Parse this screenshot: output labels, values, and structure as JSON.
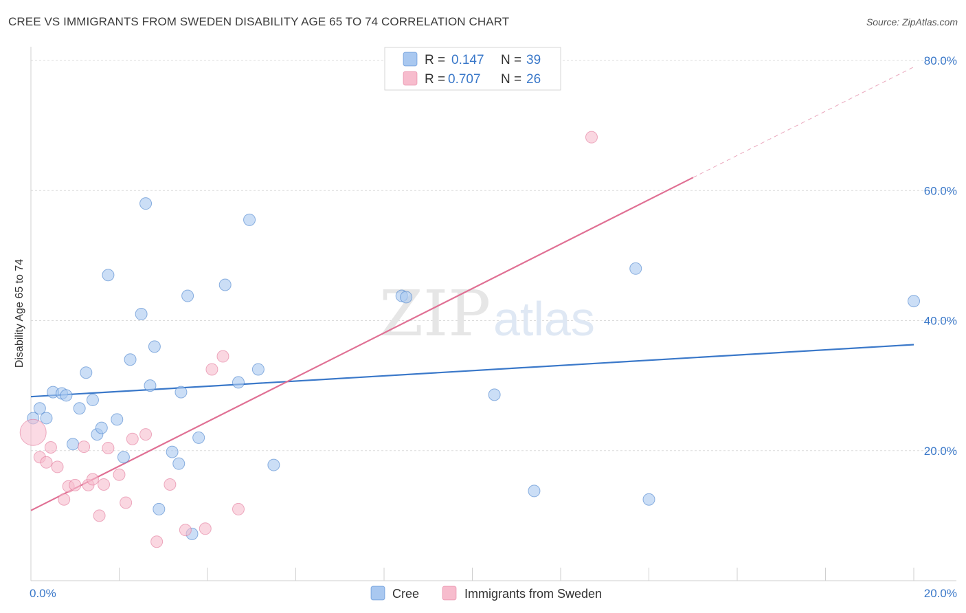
{
  "title": "CREE VS IMMIGRANTS FROM SWEDEN DISABILITY AGE 65 TO 74 CORRELATION CHART",
  "source": "Source: ZipAtlas.com",
  "watermark": {
    "zip": "ZIP",
    "atlas": "atlas"
  },
  "legend": {
    "rows": [
      {
        "r_label": "R =",
        "r_value": "0.147",
        "n_label": "N =",
        "n_value": "39",
        "color": "#a9c8f0"
      },
      {
        "r_label": "R =",
        "r_value": "0.707",
        "n_label": "N =",
        "n_value": "26",
        "color": "#f7bccd"
      }
    ]
  },
  "chart_data": {
    "type": "scatter",
    "title": "CREE VS IMMIGRANTS FROM SWEDEN DISABILITY AGE 65 TO 74 CORRELATION CHART",
    "xlabel": "",
    "ylabel": "Disability Age 65 to 74",
    "xlim": [
      0,
      20
    ],
    "ylim": [
      0,
      80
    ],
    "x_tick_labels": [
      "0.0%",
      "20.0%"
    ],
    "y_tick_labels": [
      "20.0%",
      "40.0%",
      "60.0%",
      "80.0%"
    ],
    "y_ticks": [
      20,
      40,
      60,
      80
    ],
    "grid": true,
    "legend_position": "bottom",
    "series": [
      {
        "name": "Cree",
        "color": "#3a78c9",
        "fill": "#a9c8f0",
        "trend": {
          "x0": 0,
          "y0": 28.3,
          "x1": 20,
          "y1": 36.3
        },
        "points": [
          [
            0.05,
            25.0
          ],
          [
            0.2,
            26.5
          ],
          [
            0.35,
            25.0
          ],
          [
            0.5,
            29.0
          ],
          [
            0.7,
            28.8
          ],
          [
            0.8,
            28.5
          ],
          [
            0.95,
            21.0
          ],
          [
            1.1,
            26.5
          ],
          [
            1.25,
            32.0
          ],
          [
            1.4,
            27.8
          ],
          [
            1.5,
            22.5
          ],
          [
            1.6,
            23.5
          ],
          [
            1.75,
            47.0
          ],
          [
            1.95,
            24.8
          ],
          [
            2.1,
            19.0
          ],
          [
            2.25,
            34.0
          ],
          [
            2.5,
            41.0
          ],
          [
            2.6,
            58.0
          ],
          [
            2.7,
            30.0
          ],
          [
            2.8,
            36.0
          ],
          [
            2.9,
            11.0
          ],
          [
            3.2,
            19.8
          ],
          [
            3.35,
            18.0
          ],
          [
            3.4,
            29.0
          ],
          [
            3.55,
            43.8
          ],
          [
            3.65,
            7.2
          ],
          [
            3.8,
            22.0
          ],
          [
            4.4,
            45.5
          ],
          [
            4.7,
            30.5
          ],
          [
            4.95,
            55.5
          ],
          [
            5.15,
            32.5
          ],
          [
            5.5,
            17.8
          ],
          [
            8.4,
            43.8
          ],
          [
            8.5,
            43.6
          ],
          [
            10.5,
            28.6
          ],
          [
            11.4,
            13.8
          ],
          [
            13.7,
            48.0
          ],
          [
            14.0,
            12.5
          ],
          [
            20.0,
            43.0
          ]
        ]
      },
      {
        "name": "Immigrants from Sweden",
        "color": "#e07094",
        "fill": "#f7bccd",
        "trend": {
          "x0": 0,
          "y0": 10.8,
          "x1": 15,
          "y1": 62.0,
          "dash_x1": 20,
          "dash_y1": 79.0
        },
        "points": [
          [
            0.05,
            22.8
          ],
          [
            0.2,
            19.0
          ],
          [
            0.35,
            18.2
          ],
          [
            0.45,
            20.5
          ],
          [
            0.6,
            17.5
          ],
          [
            0.75,
            12.5
          ],
          [
            0.85,
            14.5
          ],
          [
            1.0,
            14.7
          ],
          [
            1.2,
            20.6
          ],
          [
            1.3,
            14.7
          ],
          [
            1.4,
            15.6
          ],
          [
            1.55,
            10.0
          ],
          [
            1.65,
            14.8
          ],
          [
            1.75,
            20.4
          ],
          [
            2.0,
            16.3
          ],
          [
            2.15,
            12.0
          ],
          [
            2.3,
            21.8
          ],
          [
            2.6,
            22.5
          ],
          [
            2.85,
            6.0
          ],
          [
            3.15,
            14.8
          ],
          [
            3.5,
            7.8
          ],
          [
            3.95,
            8.0
          ],
          [
            4.1,
            32.5
          ],
          [
            4.35,
            34.5
          ],
          [
            4.7,
            11.0
          ],
          [
            12.7,
            68.2
          ]
        ]
      }
    ]
  }
}
